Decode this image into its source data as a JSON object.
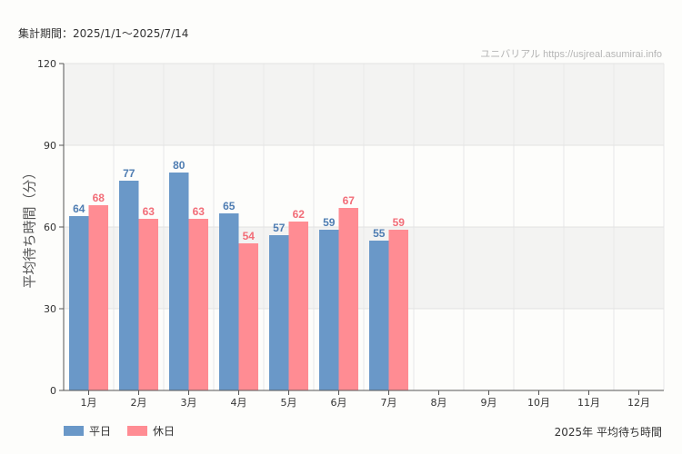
{
  "header": {
    "period": "集計期間：2025/1/1〜2025/7/14",
    "watermark": "ユニバリアル  https://usjreal.asumirai.info"
  },
  "caption": "2025年 平均待ち時間",
  "colors": {
    "weekday": "#6a98c8",
    "holiday": "#ff8c93",
    "weekday_text": "#4f7db2",
    "holiday_text": "#f26d78"
  },
  "chart_data": {
    "type": "bar",
    "categories": [
      "1月",
      "2月",
      "3月",
      "4月",
      "5月",
      "6月",
      "7月",
      "8月",
      "9月",
      "10月",
      "11月",
      "12月"
    ],
    "series": [
      {
        "name": "平日",
        "values": [
          64,
          77,
          80,
          65,
          57,
          59,
          55,
          null,
          null,
          null,
          null,
          null
        ]
      },
      {
        "name": "休日",
        "values": [
          68,
          63,
          63,
          54,
          62,
          67,
          59,
          null,
          null,
          null,
          null,
          null
        ]
      }
    ],
    "ylabel": "平均待ち時間（分）",
    "ylim": [
      0,
      120
    ],
    "yticks": [
      0,
      30,
      60,
      90,
      120
    ],
    "grid": true,
    "legend": "bottom-left"
  }
}
